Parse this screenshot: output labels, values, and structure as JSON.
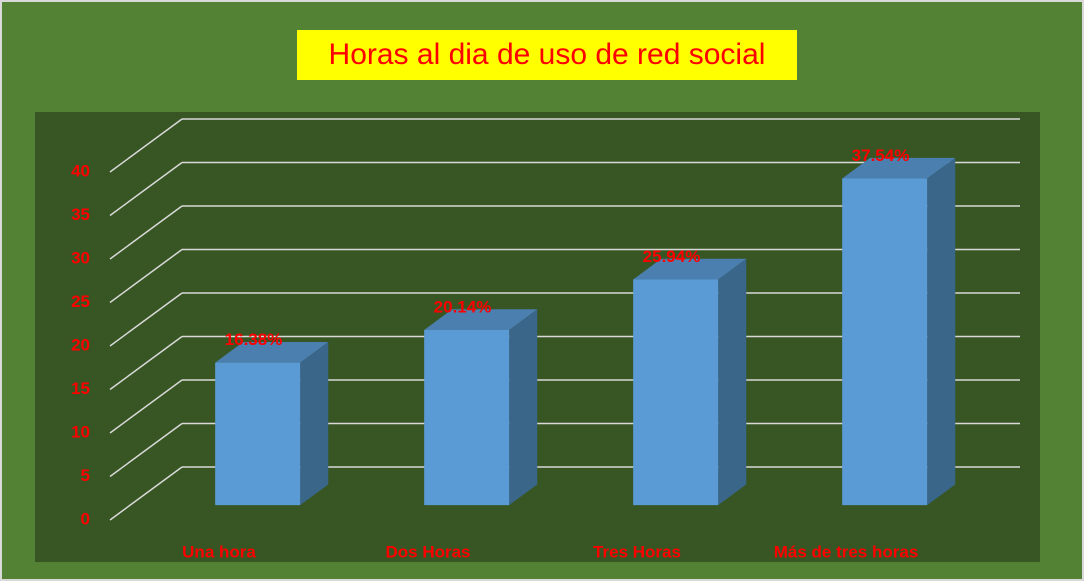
{
  "chart_data": {
    "type": "bar3d",
    "title": "Horas al dia de uso de red social",
    "categories": [
      "Una hora",
      "Dos Horas",
      "Tres Horas",
      "Más de tres horas"
    ],
    "values": [
      16.38,
      20.14,
      25.94,
      37.54
    ],
    "value_labels": [
      "16.38%",
      "20.14%",
      "25.94%",
      "37.54%"
    ],
    "color": "#5b9bd5",
    "ylim": [
      0,
      40
    ],
    "yticks": [
      0,
      5,
      10,
      15,
      20,
      25,
      30,
      35,
      40
    ],
    "grid": true
  }
}
